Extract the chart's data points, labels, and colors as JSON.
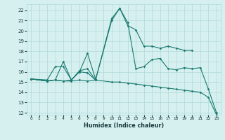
{
  "title": "",
  "xlabel": "Humidex (Indice chaleur)",
  "ylabel": "",
  "bg_color": "#d6f0f0",
  "grid_color": "#b0d8d8",
  "line_color": "#1a7a6e",
  "xlim": [
    -0.5,
    23.5
  ],
  "ylim": [
    11.8,
    22.6
  ],
  "xticks": [
    0,
    1,
    2,
    3,
    4,
    5,
    6,
    7,
    8,
    9,
    10,
    11,
    12,
    13,
    14,
    15,
    16,
    17,
    18,
    19,
    20,
    21,
    22,
    23
  ],
  "yticks": [
    12,
    13,
    14,
    15,
    16,
    17,
    18,
    19,
    20,
    21,
    22
  ],
  "series": [
    {
      "segments": [
        {
          "x": [
            0,
            2,
            3,
            4,
            5,
            6,
            7,
            8,
            10,
            11,
            12,
            13,
            14,
            15,
            16,
            17,
            18,
            19,
            20
          ],
          "y": [
            15.3,
            15.2,
            16.5,
            16.5,
            15.2,
            16.0,
            15.9,
            15.2,
            21.2,
            22.2,
            20.5,
            20.1,
            18.5,
            18.5,
            18.3,
            18.5,
            18.3,
            18.1,
            18.1
          ]
        }
      ]
    },
    {
      "segments": [
        {
          "x": [
            0,
            2,
            3,
            4,
            5,
            6,
            7,
            8
          ],
          "y": [
            15.3,
            15.1,
            15.2,
            17.0,
            15.2,
            16.0,
            17.8,
            15.3
          ]
        }
      ]
    },
    {
      "segments": [
        {
          "x": [
            0,
            2,
            3,
            4,
            5,
            6,
            7,
            8,
            10,
            11,
            12,
            13,
            14,
            15,
            16,
            17,
            18,
            19,
            20,
            21,
            22,
            23
          ],
          "y": [
            15.3,
            15.1,
            15.2,
            15.1,
            15.2,
            16.1,
            16.3,
            15.2,
            21.0,
            22.2,
            20.8,
            16.3,
            16.5,
            17.2,
            17.3,
            16.3,
            16.2,
            16.4,
            16.3,
            16.4,
            14.3,
            12.0
          ]
        }
      ]
    },
    {
      "segments": [
        {
          "x": [
            0,
            2,
            3,
            4,
            5,
            6,
            7,
            8,
            10,
            11,
            12,
            13,
            14,
            15,
            16,
            17,
            18,
            19,
            20,
            21,
            22,
            23
          ],
          "y": [
            15.3,
            15.1,
            15.2,
            15.1,
            15.1,
            15.2,
            15.1,
            15.2,
            15.0,
            15.0,
            14.9,
            14.8,
            14.7,
            14.6,
            14.5,
            14.4,
            14.3,
            14.2,
            14.1,
            14.0,
            13.5,
            11.8
          ]
        }
      ]
    }
  ]
}
